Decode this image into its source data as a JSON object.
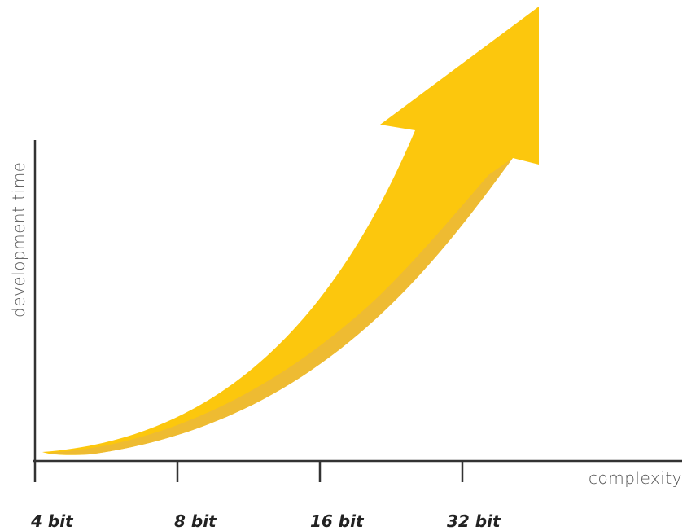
{
  "diagram": {
    "y_axis_label": "development time",
    "x_axis_label": "complexity",
    "x_ticks": [
      "4 bit",
      "8 bit",
      "16 bit",
      "32 bit"
    ],
    "colors": {
      "axis": "#333333",
      "arrow_main": "#FCC70D",
      "arrow_shadow": "#EBB83A",
      "label_text": "#555555",
      "tick_text": "#222222"
    }
  }
}
